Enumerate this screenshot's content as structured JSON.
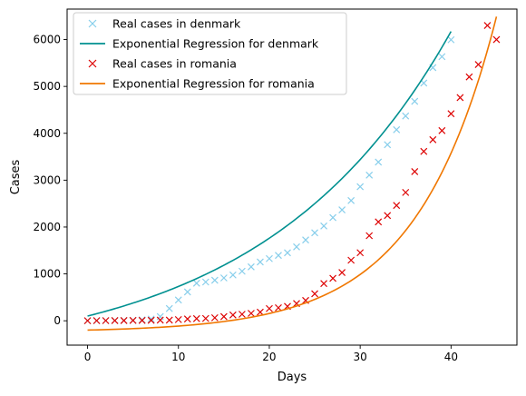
{
  "chart_data": {
    "type": "line",
    "title": "",
    "xlabel": "Days",
    "ylabel": "Cases",
    "xlim": [
      -2.25,
      47.25
    ],
    "ylim": [
      -520,
      6650
    ],
    "xticks": [
      0,
      10,
      20,
      30,
      40
    ],
    "yticks": [
      0,
      1000,
      2000,
      3000,
      4000,
      5000,
      6000
    ],
    "grid": false,
    "legend_position": "top-left",
    "series": [
      {
        "name": "Real cases in denmark",
        "kind": "scatter",
        "marker": "x",
        "color": "#87ceeb",
        "x": [
          0,
          1,
          2,
          3,
          4,
          5,
          6,
          7,
          8,
          9,
          10,
          11,
          12,
          13,
          14,
          15,
          16,
          17,
          18,
          19,
          20,
          21,
          22,
          23,
          24,
          25,
          26,
          27,
          28,
          29,
          30,
          31,
          32,
          33,
          34,
          35,
          36,
          37,
          38,
          39,
          40
        ],
        "y": [
          1,
          1,
          3,
          4,
          6,
          10,
          20,
          35,
          90,
          262,
          442,
          615,
          801,
          827,
          864,
          914,
          977,
          1057,
          1151,
          1255,
          1326,
          1395,
          1450,
          1577,
          1724,
          1877,
          2023,
          2201,
          2366,
          2564,
          2860,
          3107,
          3386,
          3757,
          4077,
          4369,
          4681,
          5071,
          5402,
          5635,
          5996
        ]
      },
      {
        "name": "Exponential Regression for denmark",
        "kind": "line",
        "color": "#009090",
        "fit": {
          "a": 1005,
          "b": 0.0488,
          "c": -905
        },
        "x_range": [
          0,
          40
        ]
      },
      {
        "name": "Real cases in romania",
        "kind": "scatter",
        "marker": "x",
        "color": "#dd0000",
        "x": [
          0,
          1,
          2,
          3,
          4,
          5,
          6,
          7,
          8,
          9,
          10,
          11,
          12,
          13,
          14,
          15,
          16,
          17,
          18,
          19,
          20,
          21,
          22,
          23,
          24,
          25,
          26,
          27,
          28,
          29,
          30,
          31,
          32,
          33,
          34,
          35,
          36,
          37,
          38,
          39,
          40,
          41,
          42,
          43,
          44,
          45
        ],
        "y": [
          1,
          3,
          3,
          4,
          4,
          6,
          7,
          9,
          15,
          15,
          25,
          38,
          45,
          49,
          64,
          89,
          123,
          139,
          158,
          184,
          260,
          277,
          308,
          367,
          433,
          576,
          794,
          906,
          1029,
          1292,
          1452,
          1815,
          2109,
          2245,
          2460,
          2738,
          3183,
          3613,
          3864,
          4057,
          4417,
          4761,
          5202,
          5467,
          6300,
          6000
        ]
      },
      {
        "name": "Exponential Regression for romania",
        "kind": "line",
        "color": "#f07700",
        "fit": {
          "a": 40.9,
          "b": 0.1134,
          "c": -240
        },
        "x_range": [
          0,
          45
        ]
      }
    ]
  }
}
